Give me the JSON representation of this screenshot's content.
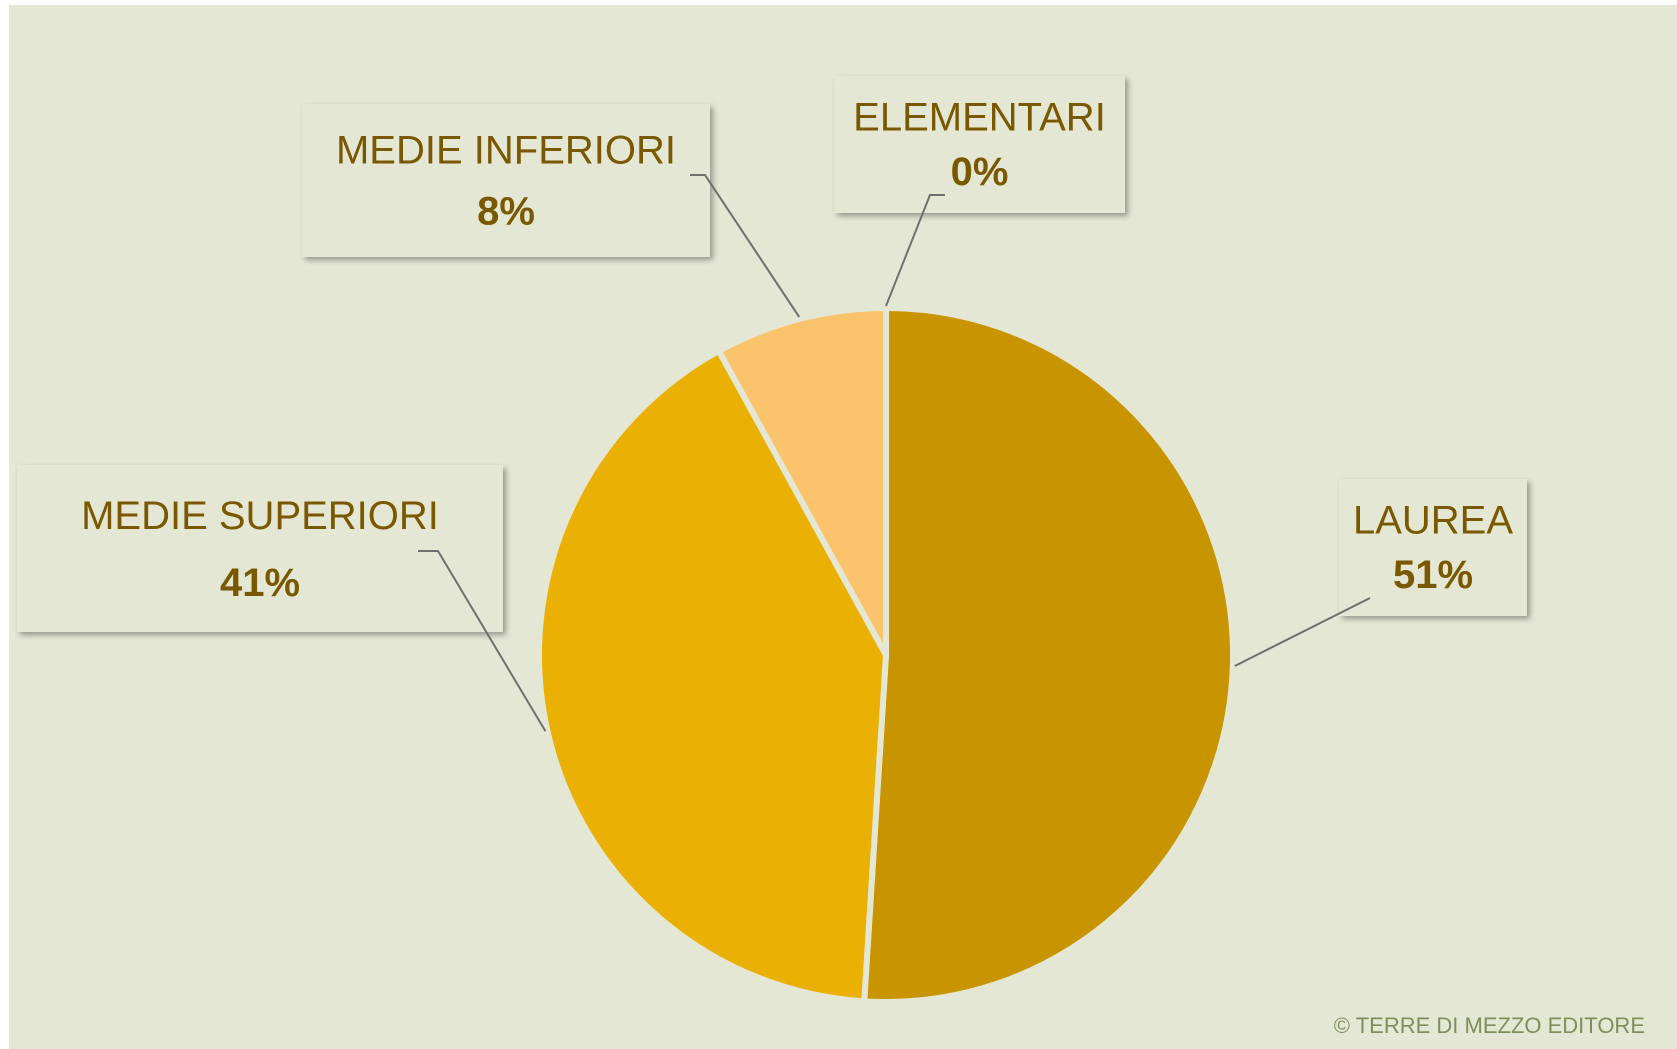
{
  "chart_data": {
    "type": "pie",
    "categories": [
      "LAUREA",
      "MEDIE SUPERIORI",
      "MEDIE INFERIORI",
      "ELEMENTARI"
    ],
    "values": [
      51,
      41,
      8,
      0
    ],
    "value_labels": [
      "51%",
      "41%",
      "8%",
      "0%"
    ],
    "colors": [
      "#c89400",
      "#eab104",
      "#fbc46c",
      "#f3d9a0"
    ],
    "credit": "© TERRE DI MEZZO EDITORE"
  }
}
